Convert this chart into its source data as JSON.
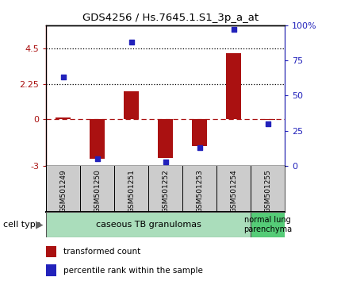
{
  "title": "GDS4256 / Hs.7645.1.S1_3p_a_at",
  "samples": [
    "GSM501249",
    "GSM501250",
    "GSM501251",
    "GSM501252",
    "GSM501253",
    "GSM501254",
    "GSM501255"
  ],
  "transformed_count": [
    0.12,
    -2.55,
    1.75,
    -2.5,
    -1.75,
    4.2,
    -0.04
  ],
  "percentile_rank": [
    63,
    5,
    88,
    3,
    13,
    97,
    30
  ],
  "ylim_left": [
    -3,
    6
  ],
  "ylim_right": [
    0,
    100
  ],
  "yticks_left": [
    -3,
    0,
    2.25,
    4.5
  ],
  "ytick_labels_left": [
    "-3",
    "0",
    "2.25",
    "4.5"
  ],
  "yticks_right": [
    0,
    25,
    50,
    75,
    100
  ],
  "ytick_labels_right": [
    "0",
    "25",
    "50",
    "75",
    "100%"
  ],
  "dotted_lines": [
    2.25,
    4.5
  ],
  "bar_color": "#aa1111",
  "dot_color": "#2222bb",
  "zero_line_color": "#aa1111",
  "xticklabel_bg": "#cccccc",
  "cell_type_1_label": "caseous TB granulomas",
  "cell_type_1_samples": [
    0,
    1,
    2,
    3,
    4,
    5
  ],
  "cell_type_1_color": "#aaddbb",
  "cell_type_2_label": "normal lung\nparenchyma",
  "cell_type_2_samples": [
    6
  ],
  "cell_type_2_color": "#55cc77",
  "cell_type_label": "cell type",
  "legend_bar_label": "transformed count",
  "legend_dot_label": "percentile rank within the sample",
  "bar_width": 0.45
}
